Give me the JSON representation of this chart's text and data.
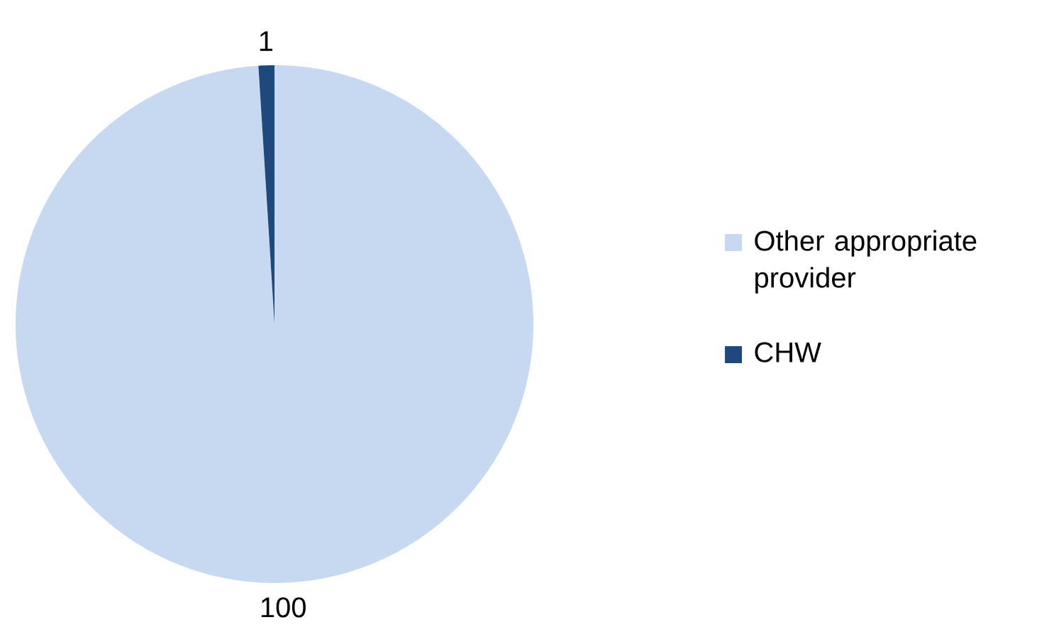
{
  "chart_data": {
    "type": "pie",
    "categories": [
      "Other appropriate provider",
      "CHW"
    ],
    "values": [
      100,
      1
    ],
    "colors": [
      "#c6d9f1",
      "#1f497d"
    ],
    "data_labels": true,
    "legend": "right"
  }
}
